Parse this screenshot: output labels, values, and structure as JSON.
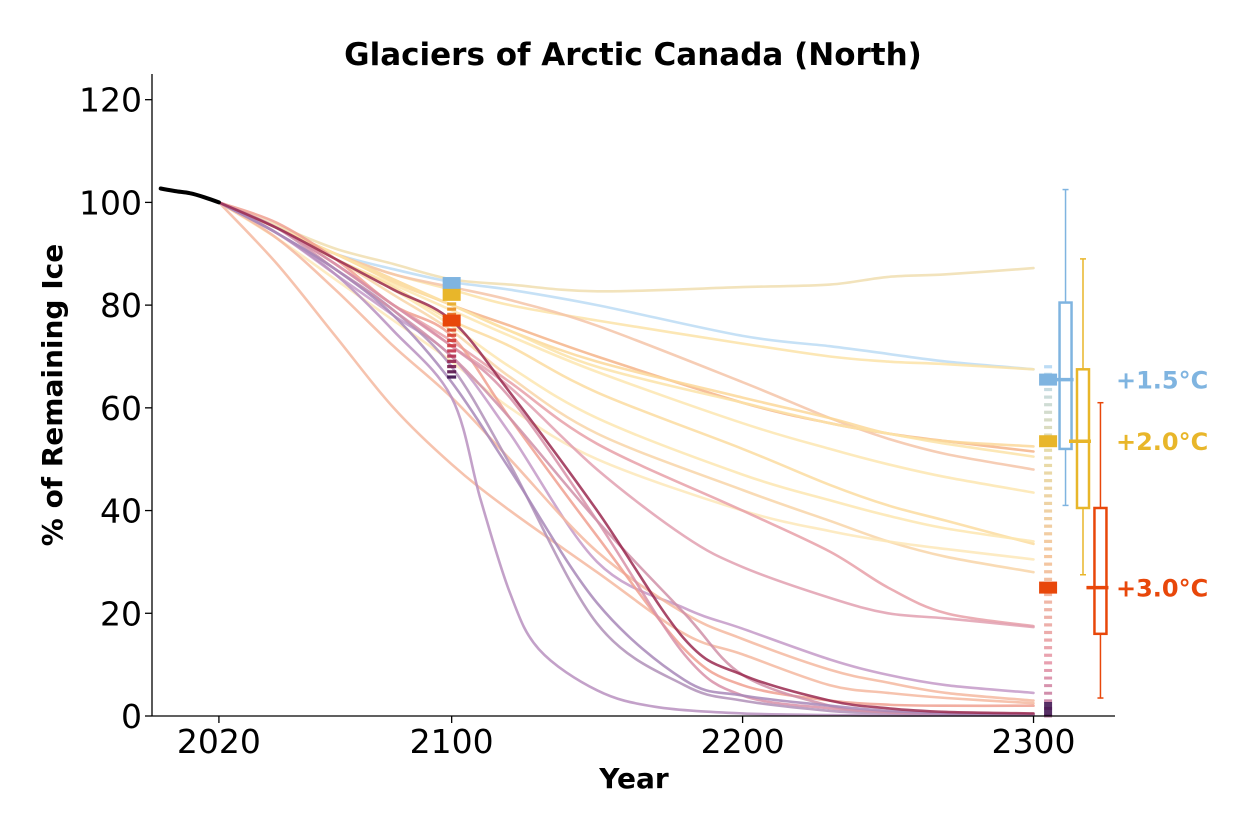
{
  "chart_data": {
    "type": "line",
    "title": "Glaciers of Arctic Canada (North)",
    "xlabel": "Year",
    "ylabel": "% of Remaining Ice",
    "xlim": [
      1997,
      2328
    ],
    "ylim": [
      0,
      125
    ],
    "xticks": [
      2020,
      2100,
      2200,
      2300
    ],
    "yticks": [
      0,
      20,
      40,
      60,
      80,
      100,
      120
    ],
    "grid": false,
    "colors": {
      "historical": "#000000",
      "warming_1_5": "#7fb4e0",
      "warming_2_0": "#e8b62a",
      "warming_3_0": "#e8470a",
      "darkest": "#3a0a4a",
      "axis": "#000000"
    },
    "historical": {
      "x": [
        2000,
        2005,
        2010,
        2015,
        2020
      ],
      "y": [
        102.7,
        102.2,
        101.8,
        101.0,
        100.0
      ]
    },
    "series": [
      {
        "color": "#f0deb0",
        "x": [
          2020,
          2040,
          2060,
          2080,
          2100,
          2120,
          2150,
          2200,
          2230,
          2250,
          2270,
          2300
        ],
        "y": [
          100,
          95.5,
          91,
          88,
          85,
          84,
          82.7,
          83.5,
          84,
          85.5,
          86,
          87.2
        ]
      },
      {
        "color": "#bcdcf5",
        "x": [
          2020,
          2040,
          2060,
          2080,
          2100,
          2120,
          2150,
          2200,
          2230,
          2250,
          2270,
          2300
        ],
        "y": [
          100,
          95,
          90,
          87,
          84.5,
          83,
          80,
          74,
          72,
          70.5,
          69,
          67.5
        ]
      },
      {
        "color": "#fbe3a8",
        "x": [
          2020,
          2040,
          2060,
          2080,
          2100,
          2120,
          2150,
          2200,
          2230,
          2250,
          2270,
          2300
        ],
        "y": [
          100,
          95,
          90,
          86,
          83,
          80,
          77,
          72.5,
          70,
          69,
          68.5,
          67.5
        ]
      },
      {
        "color": "#f4c4a8",
        "x": [
          2020,
          2040,
          2060,
          2080,
          2100,
          2120,
          2150,
          2200,
          2230,
          2250,
          2270,
          2300
        ],
        "y": [
          100,
          95,
          90,
          86,
          83.5,
          81,
          76,
          65,
          58,
          54,
          51,
          48
        ]
      },
      {
        "color": "#f5b48a",
        "x": [
          2020,
          2040,
          2060,
          2080,
          2100,
          2120,
          2150,
          2200,
          2230,
          2250,
          2270,
          2300
        ],
        "y": [
          100,
          95,
          90,
          85,
          80,
          76,
          70,
          61,
          57,
          55,
          53.5,
          51.5
        ]
      },
      {
        "color": "#fcd89a",
        "x": [
          2020,
          2040,
          2060,
          2080,
          2100,
          2120,
          2150,
          2200,
          2230,
          2250,
          2270,
          2300
        ],
        "y": [
          100,
          95,
          90,
          84.5,
          80,
          75,
          69,
          62,
          58,
          55,
          53.5,
          52.5
        ]
      },
      {
        "color": "#fbe3a8",
        "x": [
          2020,
          2040,
          2060,
          2080,
          2100,
          2120,
          2150,
          2200,
          2230,
          2250,
          2270,
          2300
        ],
        "y": [
          100,
          95,
          90,
          85,
          80,
          75,
          68,
          61,
          57,
          55,
          53,
          50.5
        ]
      },
      {
        "color": "#fde6b0",
        "x": [
          2020,
          2040,
          2060,
          2080,
          2100,
          2120,
          2150,
          2200,
          2230,
          2250,
          2270,
          2300
        ],
        "y": [
          100,
          95,
          89,
          84,
          79,
          74,
          67,
          57,
          52,
          49,
          46.5,
          43.5
        ]
      },
      {
        "color": "#fbdca0",
        "x": [
          2020,
          2040,
          2060,
          2080,
          2100,
          2120,
          2150,
          2200,
          2230,
          2250,
          2270,
          2300
        ],
        "y": [
          100,
          95,
          89,
          83.5,
          77,
          72,
          63,
          52,
          45,
          41,
          38,
          33.5
        ]
      },
      {
        "color": "#fde6b0",
        "x": [
          2020,
          2040,
          2060,
          2080,
          2100,
          2120,
          2150,
          2200,
          2230,
          2250,
          2270,
          2300
        ],
        "y": [
          100,
          95,
          89,
          83,
          76,
          68,
          58,
          47,
          42,
          39,
          36.5,
          34
        ]
      },
      {
        "color": "#f8d5a8",
        "x": [
          2020,
          2040,
          2060,
          2080,
          2100,
          2120,
          2150,
          2200,
          2230,
          2250,
          2270,
          2300
        ],
        "y": [
          100,
          95,
          89,
          82,
          75,
          66,
          55,
          44,
          38,
          34,
          31,
          28
        ]
      },
      {
        "color": "#fde8b8",
        "x": [
          2020,
          2040,
          2060,
          2080,
          2100,
          2120,
          2150,
          2200,
          2230,
          2250,
          2270,
          2300
        ],
        "y": [
          100,
          93,
          85,
          77,
          69,
          60,
          50,
          40,
          36,
          34,
          32.5,
          30.5
        ]
      },
      {
        "color": "#e8a0a8",
        "x": [
          2020,
          2040,
          2060,
          2080,
          2100,
          2120,
          2150,
          2200,
          2230,
          2250,
          2270,
          2300
        ],
        "y": [
          100,
          95,
          88,
          80,
          73,
          65,
          53,
          40,
          32,
          25,
          20,
          17.5
        ]
      },
      {
        "color": "#e2a0b0",
        "x": [
          2020,
          2040,
          2060,
          2080,
          2100,
          2120,
          2150,
          2180,
          2200,
          2230,
          2250,
          2270,
          2300
        ],
        "y": [
          100,
          95,
          88,
          80,
          72,
          64,
          48,
          35,
          29,
          23,
          20,
          19,
          17.3
        ]
      },
      {
        "color": "#c49ac8",
        "x": [
          2020,
          2040,
          2060,
          2080,
          2100,
          2120,
          2150,
          2180,
          2200,
          2230,
          2250,
          2270,
          2300
        ],
        "y": [
          100,
          94,
          86,
          78,
          70,
          55,
          30,
          21,
          17,
          11,
          8,
          6,
          4.5
        ]
      },
      {
        "color": "#f5b8a0",
        "x": [
          2020,
          2040,
          2060,
          2080,
          2100,
          2120,
          2150,
          2180,
          2200,
          2230,
          2250,
          2270,
          2300
        ],
        "y": [
          100,
          93,
          83,
          72,
          62,
          50,
          32,
          20,
          15,
          9,
          6.5,
          4.5,
          3
        ]
      },
      {
        "color": "#f5b8a0",
        "x": [
          2020,
          2040,
          2060,
          2080,
          2100,
          2120,
          2150,
          2180,
          2200,
          2230,
          2250,
          2270,
          2300
        ],
        "y": [
          100,
          88,
          74,
          60,
          49,
          40,
          28,
          16,
          12,
          6,
          4.5,
          3.5,
          2.5
        ]
      },
      {
        "color": "#f0a090",
        "x": [
          2020,
          2040,
          2060,
          2080,
          2100,
          2120,
          2150,
          2180,
          2200,
          2230,
          2250,
          2270,
          2300
        ],
        "y": [
          100,
          96,
          89,
          80,
          74,
          58,
          35,
          13,
          6,
          3,
          2.2,
          2,
          2
        ]
      },
      {
        "color": "#d890a8",
        "x": [
          2020,
          2040,
          2060,
          2080,
          2100,
          2120,
          2150,
          2180,
          2200,
          2230,
          2250,
          2270,
          2300
        ],
        "y": [
          100,
          95,
          88,
          80,
          72,
          62,
          38,
          12,
          4,
          1.5,
          0.8,
          0.5,
          0.3
        ]
      },
      {
        "color": "#b090b8",
        "x": [
          2020,
          2040,
          2060,
          2080,
          2100,
          2120,
          2150,
          2180,
          2200,
          2230,
          2250,
          2270,
          2300
        ],
        "y": [
          100,
          94,
          87,
          79,
          68,
          49,
          18,
          6,
          3,
          1,
          0.5,
          0.3,
          0.2
        ]
      },
      {
        "color": "#d090a8",
        "x": [
          2020,
          2040,
          2060,
          2080,
          2100,
          2120,
          2150,
          2180,
          2200,
          2230,
          2250,
          2270,
          2300
        ],
        "y": [
          100,
          95,
          87,
          79,
          70,
          58,
          38,
          20,
          8,
          2,
          0.7,
          0.4,
          0.3
        ]
      },
      {
        "color": "#b890c0",
        "x": [
          2020,
          2040,
          2060,
          2080,
          2100,
          2110,
          2120,
          2130,
          2150,
          2170,
          2200,
          2230,
          2250,
          2270,
          2300
        ],
        "y": [
          100,
          94,
          86,
          75,
          62,
          42,
          24,
          13,
          5,
          1.8,
          0.5,
          0.2,
          0.1,
          0.1,
          0.1
        ]
      },
      {
        "color": "#a888b8",
        "x": [
          2020,
          2040,
          2060,
          2080,
          2100,
          2120,
          2150,
          2180,
          2200,
          2230,
          2250,
          2270,
          2300
        ],
        "y": [
          100,
          94,
          87,
          78,
          65,
          48,
          22,
          7,
          4,
          2,
          1,
          0.5,
          0.3
        ]
      },
      {
        "color": "#9a2a50",
        "x": [
          2020,
          2040,
          2060,
          2080,
          2100,
          2120,
          2150,
          2180,
          2200,
          2230,
          2250,
          2270,
          2300
        ],
        "y": [
          100,
          95,
          89,
          83,
          77,
          63,
          40,
          15,
          8,
          3,
          1.5,
          0.8,
          0.5
        ]
      }
    ],
    "markers_2100": {
      "x": 2100,
      "points": [
        {
          "y": 84.3,
          "color": "#7fb4e0"
        },
        {
          "y": 82.0,
          "color": "#e8b62a"
        },
        {
          "y": 77.0,
          "color": "#e8470a"
        }
      ],
      "ensemble_min": 66
    },
    "markers_2300": {
      "x": 2305,
      "points": [
        {
          "y": 65.5,
          "color": "#7fb4e0"
        },
        {
          "y": 53.5,
          "color": "#e8b62a"
        },
        {
          "y": 25.0,
          "color": "#e8470a"
        }
      ],
      "ensemble_min": 0,
      "ensemble_max": 68
    },
    "boxplots": [
      {
        "label": "+1.5°C",
        "color": "#7fb4e0",
        "x": 2311,
        "whisker_low": 41,
        "q1": 52,
        "median": 65.5,
        "q3": 80.5,
        "whisker_high": 102.5
      },
      {
        "label": "+2.0°C",
        "color": "#e8b62a",
        "x": 2317,
        "whisker_low": 27.5,
        "q1": 40.5,
        "median": 53.5,
        "q3": 67.5,
        "whisker_high": 89
      },
      {
        "label": "+3.0°C",
        "color": "#e8470a",
        "x": 2323,
        "whisker_low": 3.5,
        "q1": 16,
        "median": 25,
        "q3": 40.5,
        "whisker_high": 61
      }
    ]
  }
}
